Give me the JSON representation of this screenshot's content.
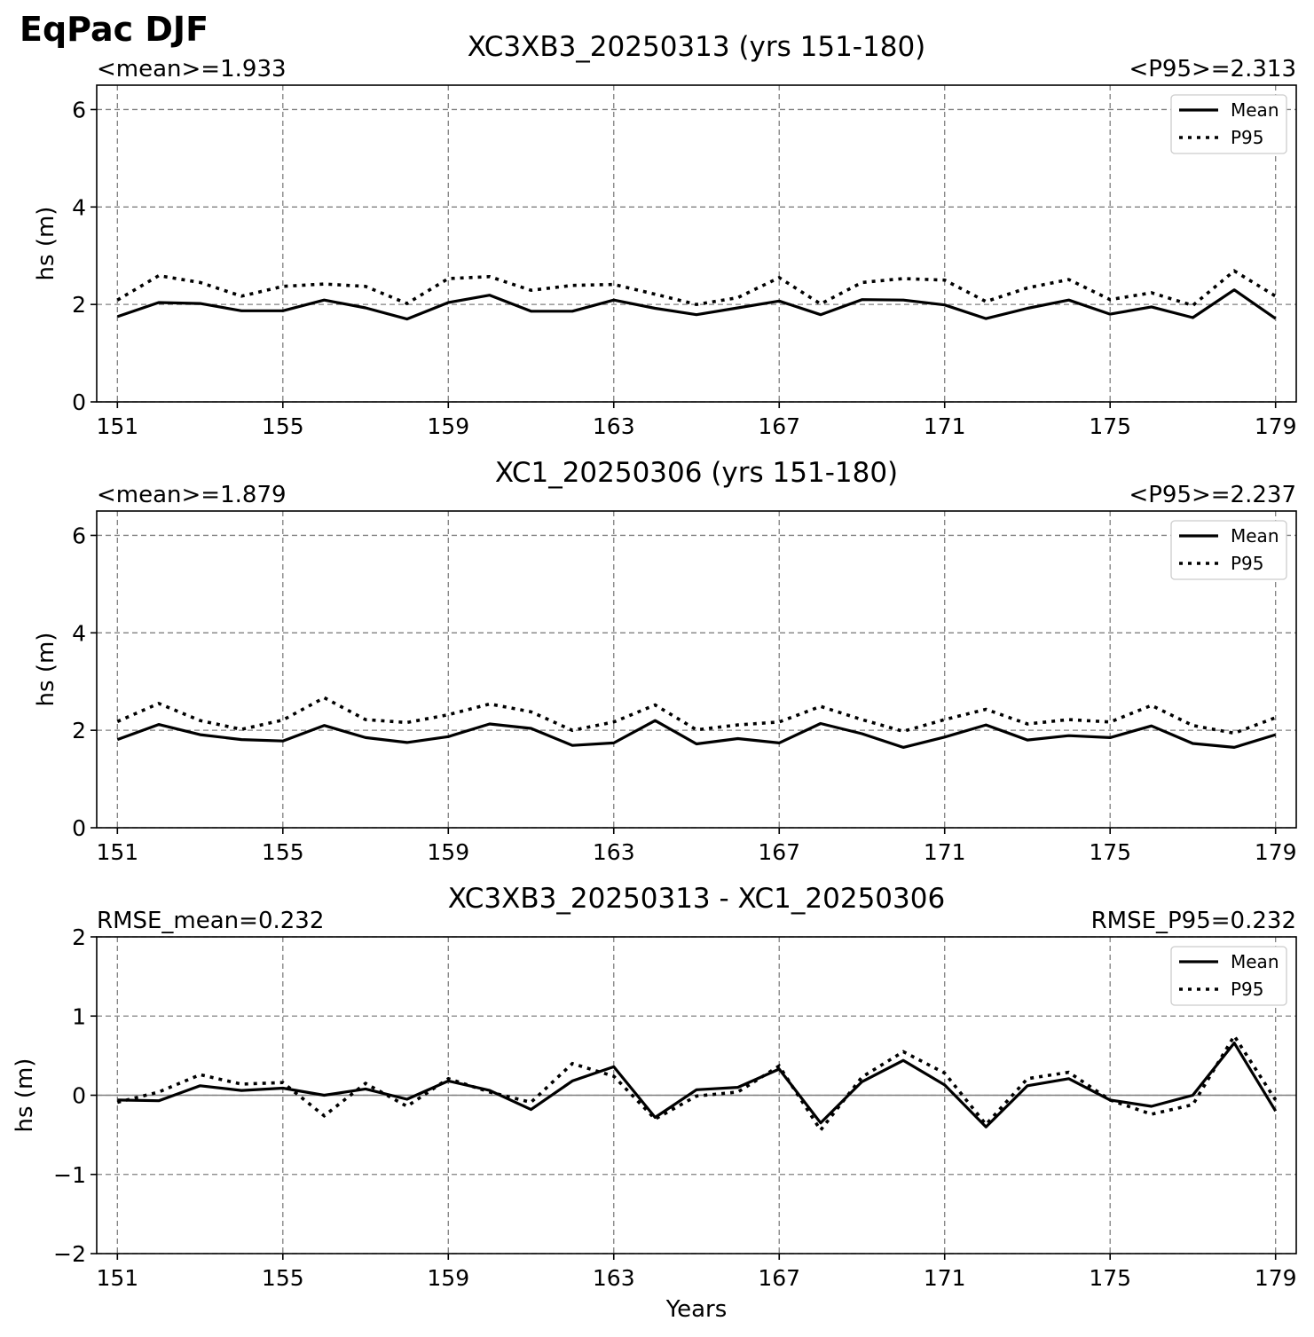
{
  "figure": {
    "suptitle": "EqPac DJF"
  },
  "chart_data": [
    {
      "type": "line",
      "title": "XC3XB3_20250313 (yrs 151-180)",
      "left_note": "<mean>=1.933",
      "right_note": "<P95>=2.313",
      "xlabel": "",
      "ylabel": "hs (m)",
      "ylim": [
        0,
        6.5
      ],
      "yticks": [
        0,
        2,
        4,
        6
      ],
      "ytick_labels": [
        "0",
        "2",
        "4",
        "6"
      ],
      "xlim": [
        150.5,
        179.5
      ],
      "xticks": [
        151,
        155,
        159,
        163,
        167,
        171,
        175,
        179
      ],
      "xtick_labels": [
        "151",
        "155",
        "159",
        "163",
        "167",
        "171",
        "175",
        "179"
      ],
      "grid": true,
      "zero_line": false,
      "legend": "top-right",
      "x": [
        151,
        152,
        153,
        154,
        155,
        156,
        157,
        158,
        159,
        160,
        161,
        162,
        163,
        164,
        165,
        166,
        167,
        168,
        169,
        170,
        171,
        172,
        173,
        174,
        175,
        176,
        177,
        178,
        179
      ],
      "series": [
        {
          "name": "Mean",
          "style": "solid",
          "values": [
            1.75,
            2.04,
            2.02,
            1.87,
            1.87,
            2.09,
            1.93,
            1.7,
            2.04,
            2.19,
            1.86,
            1.86,
            2.09,
            1.92,
            1.79,
            1.93,
            2.07,
            1.79,
            2.1,
            2.09,
            1.99,
            1.71,
            1.92,
            2.09,
            1.8,
            1.95,
            1.73,
            2.3,
            1.71
          ]
        },
        {
          "name": "P95",
          "style": "dotted",
          "values": [
            2.09,
            2.59,
            2.45,
            2.17,
            2.37,
            2.42,
            2.37,
            2.02,
            2.53,
            2.57,
            2.29,
            2.39,
            2.41,
            2.21,
            2.0,
            2.14,
            2.55,
            2.01,
            2.45,
            2.53,
            2.5,
            2.06,
            2.34,
            2.51,
            2.1,
            2.24,
            1.98,
            2.69,
            2.17
          ]
        }
      ]
    },
    {
      "type": "line",
      "title": "XC1_20250306 (yrs 151-180)",
      "left_note": "<mean>=1.879",
      "right_note": "<P95>=2.237",
      "xlabel": "",
      "ylabel": "hs (m)",
      "ylim": [
        0,
        6.5
      ],
      "yticks": [
        0,
        2,
        4,
        6
      ],
      "ytick_labels": [
        "0",
        "2",
        "4",
        "6"
      ],
      "xlim": [
        150.5,
        179.5
      ],
      "xticks": [
        151,
        155,
        159,
        163,
        167,
        171,
        175,
        179
      ],
      "xtick_labels": [
        "151",
        "155",
        "159",
        "163",
        "167",
        "171",
        "175",
        "179"
      ],
      "grid": true,
      "zero_line": false,
      "legend": "top-right",
      "x": [
        151,
        152,
        153,
        154,
        155,
        156,
        157,
        158,
        159,
        160,
        161,
        162,
        163,
        164,
        165,
        166,
        167,
        168,
        169,
        170,
        171,
        172,
        173,
        174,
        175,
        176,
        177,
        178,
        179
      ],
      "series": [
        {
          "name": "Mean",
          "style": "solid",
          "values": [
            1.81,
            2.12,
            1.91,
            1.81,
            1.78,
            2.1,
            1.85,
            1.75,
            1.87,
            2.13,
            2.04,
            1.69,
            1.74,
            2.2,
            1.72,
            1.83,
            1.74,
            2.14,
            1.93,
            1.65,
            1.86,
            2.11,
            1.8,
            1.89,
            1.85,
            2.09,
            1.73,
            1.65,
            1.91
          ]
        },
        {
          "name": "P95",
          "style": "dotted",
          "values": [
            2.18,
            2.55,
            2.2,
            2.02,
            2.21,
            2.67,
            2.22,
            2.16,
            2.32,
            2.54,
            2.38,
            2.0,
            2.17,
            2.52,
            2.01,
            2.11,
            2.17,
            2.49,
            2.22,
            1.98,
            2.22,
            2.43,
            2.13,
            2.22,
            2.17,
            2.51,
            2.1,
            1.94,
            2.26
          ]
        }
      ]
    },
    {
      "type": "line",
      "title": "XC3XB3_20250313 - XC1_20250306",
      "left_note": "RMSE_mean=0.232",
      "right_note": "RMSE_P95=0.232",
      "xlabel": "Years",
      "ylabel": "hs (m)",
      "ylim": [
        -2,
        2
      ],
      "yticks": [
        -2,
        -1,
        0,
        1,
        2
      ],
      "ytick_labels": [
        "−2",
        "−1",
        "0",
        "1",
        "2"
      ],
      "xlim": [
        150.5,
        179.5
      ],
      "xticks": [
        151,
        155,
        159,
        163,
        167,
        171,
        175,
        179
      ],
      "xtick_labels": [
        "151",
        "155",
        "159",
        "163",
        "167",
        "171",
        "175",
        "179"
      ],
      "grid": true,
      "zero_line": true,
      "legend": "top-right",
      "x": [
        151,
        152,
        153,
        154,
        155,
        156,
        157,
        158,
        159,
        160,
        161,
        162,
        163,
        164,
        165,
        166,
        167,
        168,
        169,
        170,
        171,
        172,
        173,
        174,
        175,
        176,
        177,
        178,
        179
      ],
      "series": [
        {
          "name": "Mean",
          "style": "solid",
          "values": [
            -0.06,
            -0.07,
            0.12,
            0.06,
            0.09,
            0.0,
            0.08,
            -0.05,
            0.18,
            0.06,
            -0.18,
            0.18,
            0.36,
            -0.28,
            0.07,
            0.1,
            0.33,
            -0.35,
            0.17,
            0.44,
            0.13,
            -0.4,
            0.12,
            0.21,
            -0.06,
            -0.14,
            0.0,
            0.66,
            -0.2
          ]
        },
        {
          "name": "P95",
          "style": "dotted",
          "values": [
            -0.09,
            0.04,
            0.26,
            0.14,
            0.16,
            -0.26,
            0.15,
            -0.14,
            0.21,
            0.04,
            -0.09,
            0.4,
            0.24,
            -0.3,
            -0.01,
            0.04,
            0.37,
            -0.44,
            0.23,
            0.55,
            0.28,
            -0.37,
            0.21,
            0.29,
            -0.06,
            -0.24,
            -0.12,
            0.75,
            -0.06
          ]
        }
      ]
    }
  ]
}
